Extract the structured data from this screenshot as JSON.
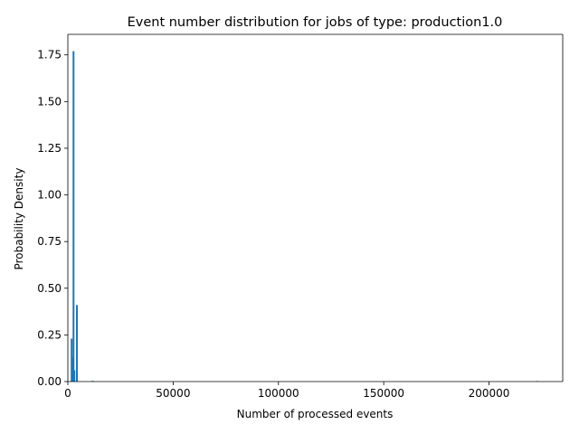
{
  "chart_data": {
    "type": "bar",
    "title": "Event number distribution for jobs of type: production1.0",
    "xlabel": "Number of processed events",
    "ylabel": "Probability Density",
    "xlim": [
      0,
      235000
    ],
    "ylim": [
      0,
      1.86
    ],
    "x_ticks": [
      0,
      50000,
      100000,
      150000,
      200000
    ],
    "x_tick_labels": [
      "0",
      "50000",
      "100000",
      "150000",
      "200000"
    ],
    "y_ticks": [
      0.0,
      0.25,
      0.5,
      0.75,
      1.0,
      1.25,
      1.5,
      1.75
    ],
    "y_tick_labels": [
      "0.00",
      "0.25",
      "0.50",
      "0.75",
      "1.00",
      "1.25",
      "1.50",
      "1.75"
    ],
    "grid": false,
    "legend": "none",
    "bar_color": "#1f77b4",
    "bars": [
      {
        "x": 1800,
        "height": 0.23
      },
      {
        "x": 2300,
        "height": 0.13
      },
      {
        "x": 2700,
        "height": 1.77
      },
      {
        "x": 3100,
        "height": 0.06
      },
      {
        "x": 4300,
        "height": 0.41
      },
      {
        "x": 11800,
        "height": 0.004
      },
      {
        "x": 223000,
        "height": 0.002
      }
    ]
  }
}
